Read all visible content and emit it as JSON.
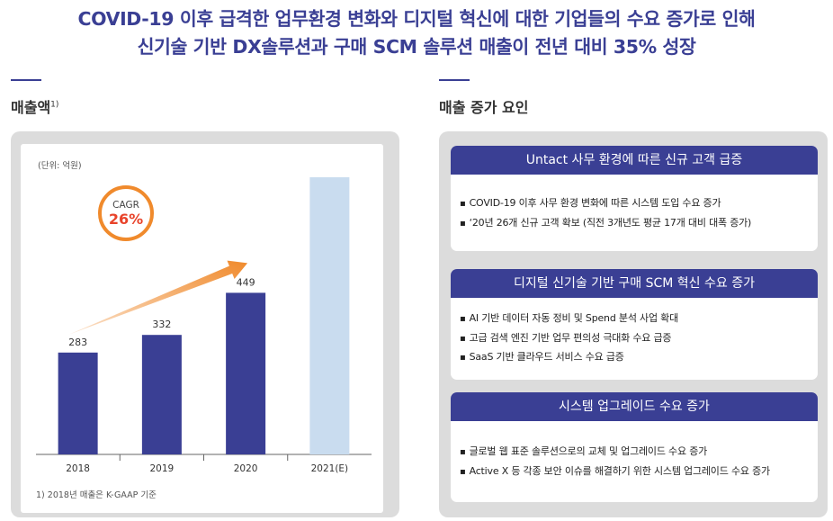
{
  "headline": {
    "line1": "COVID-19 이후 급격한 업무환경 변화와 디지털 혁신에 대한 기업들의 수요 증가로 인해",
    "line2": "신기술 기반 DX솔루션과 구매 SCM 솔루션 매출이 전년 대비 35% 성장"
  },
  "left": {
    "title": "매출액",
    "title_sup": "1)",
    "unit": "(단위: 억원)",
    "footnote": "1) 2018년 매출은 K-GAAP 기준"
  },
  "cagr": {
    "label": "CAGR",
    "value": "26%"
  },
  "chart_data": {
    "type": "bar",
    "title": "매출액",
    "unit": "억원",
    "categories": [
      "2018",
      "2019",
      "2020",
      "2021(E)"
    ],
    "values": [
      283,
      332,
      449,
      770
    ],
    "value_labels": [
      "283",
      "332",
      "449",
      ""
    ],
    "estimated_index": 3,
    "ylim": [
      0,
      800
    ],
    "colors": {
      "actual": "#3a3f94",
      "estimate": "#c9dcef",
      "arrow": "#f08a2c"
    }
  },
  "right": {
    "title": "매출 증가 요인",
    "cards": [
      {
        "header": "Untact 사무 환경에 따른 신규 고객 급증",
        "items": [
          "COVID-19 이후 사무 환경 변화에 따른 시스템 도입 수요 증가",
          "‘20년 26개 신규 고객 확보 (직전 3개년도 평균 17개 대비 대폭 증가)"
        ]
      },
      {
        "header": "디지털 신기술 기반 구매 SCM 혁신 수요 증가",
        "items": [
          "AI 기반 데이터 자동 정비 및 Spend 분석 사업 확대",
          "고급 검색 엔진 기반 업무 편의성 극대화 수요 급증",
          "SaaS 기반 클라우드 서비스 수요 급증"
        ]
      },
      {
        "header": "시스템 업그레이드 수요 증가",
        "items": [
          "글로벌 웹 표준 솔루션으로의 교체 및 업그레이드 수요 증가",
          "Active X 등 각종 보안 이슈를 해결하기 위한 시스템 업그레이드 수요 증가"
        ]
      }
    ]
  }
}
